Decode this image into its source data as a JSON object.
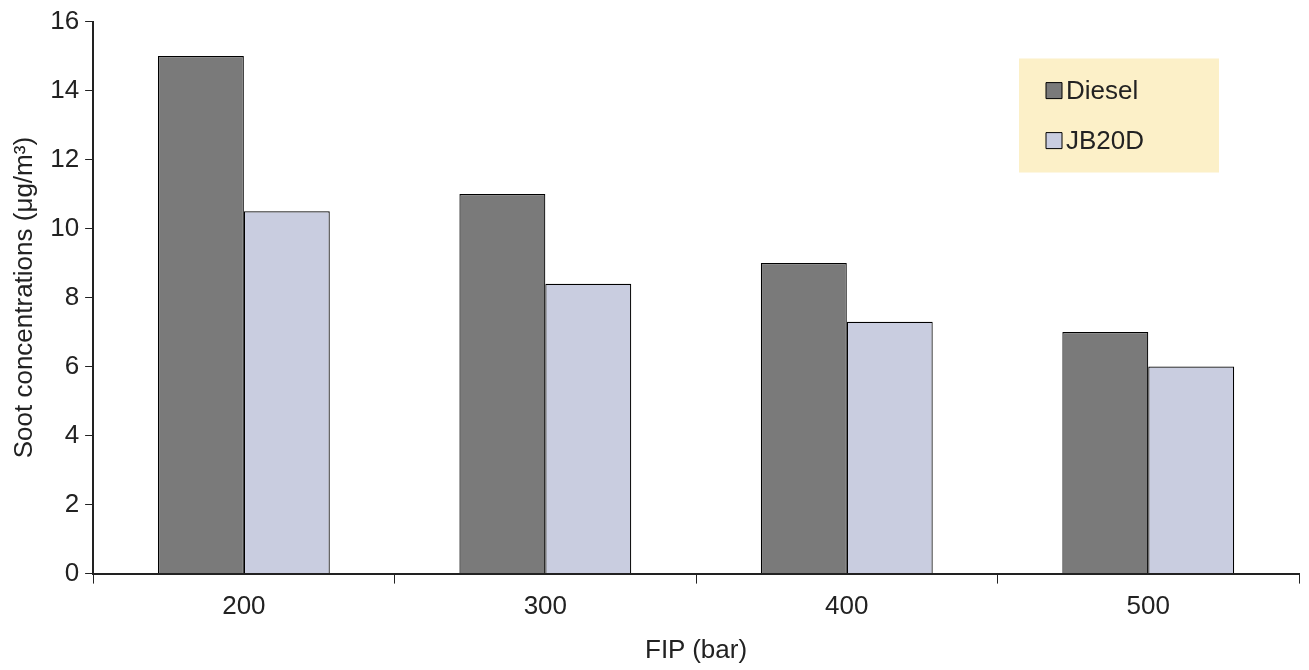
{
  "chart_data": {
    "type": "bar",
    "xlabel": "FIP (bar)",
    "ylabel": "Soot concentrations (μg/m³)",
    "categories": [
      "200",
      "300",
      "400",
      "500"
    ],
    "series": [
      {
        "name": "Diesel",
        "color": "#7a7a7a",
        "values": [
          15,
          11,
          9,
          7
        ]
      },
      {
        "name": "JB20D",
        "color": "#c9cde0",
        "values": [
          10.5,
          8.4,
          7.3,
          6.0
        ]
      }
    ],
    "ylim": [
      0,
      16
    ],
    "yticks": [
      0,
      2,
      4,
      6,
      8,
      10,
      12,
      14,
      16
    ],
    "grid": false,
    "legend": "top right"
  }
}
